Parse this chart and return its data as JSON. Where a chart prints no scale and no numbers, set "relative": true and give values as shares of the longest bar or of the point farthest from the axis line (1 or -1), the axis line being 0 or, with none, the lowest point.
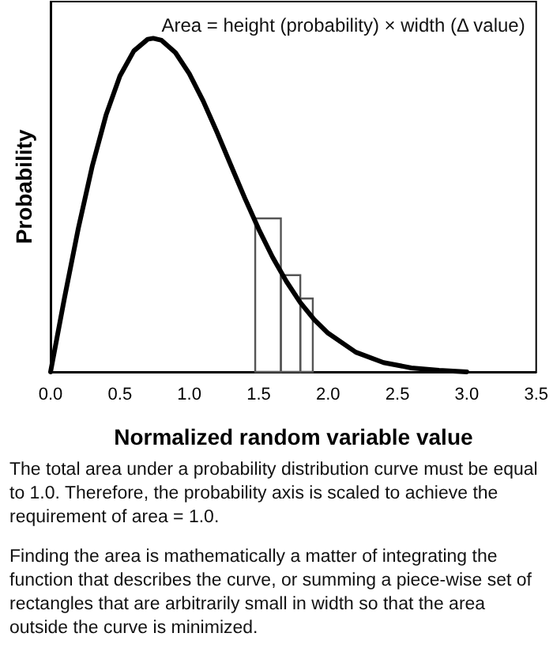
{
  "chart_data": {
    "type": "line",
    "relative": true,
    "xlabel": "Normalized random variable value",
    "ylabel": "Probability",
    "xlim": [
      0,
      3.5
    ],
    "xticks": [
      {
        "value": 0,
        "label": "0.0"
      },
      {
        "value": 0.5,
        "label": "0.5"
      },
      {
        "value": 1,
        "label": "1.0"
      },
      {
        "value": 1.5,
        "label": "1.5"
      },
      {
        "value": 2,
        "label": "2.0"
      },
      {
        "value": 2.5,
        "label": "2.5"
      },
      {
        "value": 3,
        "label": "3.0"
      },
      {
        "value": 3.5,
        "label": "3.5"
      }
    ],
    "grid": false,
    "marker": "none",
    "line_style": "solid",
    "series": [
      {
        "color": "#000000",
        "x": [
          0,
          0.1,
          0.2,
          0.3,
          0.4,
          0.5,
          0.6,
          0.7,
          0.74,
          0.8,
          0.9,
          1.0,
          1.1,
          1.2,
          1.3,
          1.4,
          1.5,
          1.6,
          1.7,
          1.8,
          1.9,
          2.0,
          2.2,
          2.4,
          2.6,
          2.8,
          3.0
        ],
        "values": [
          0,
          0.221,
          0.43,
          0.616,
          0.77,
          0.887,
          0.962,
          0.997,
          1,
          0.994,
          0.957,
          0.894,
          0.812,
          0.718,
          0.619,
          0.521,
          0.428,
          0.344,
          0.271,
          0.208,
          0.157,
          0.116,
          0.059,
          0.028,
          0.012,
          0.005,
          0
        ]
      },
      {
        "type": "histogram",
        "color": "#555555",
        "bins": [
          1.475,
          1.66,
          1.8,
          1.89
        ],
        "values": [
          0.46,
          0.29,
          0.22
        ]
      }
    ],
    "annotations": [
      "Area = height (probability) × width (Δ value)",
      "The total area under a probability distribution curve must be equal to 1.0. Therefore, the probability axis is scaled to achieve the requirement of area = 1.0.",
      "Finding the area is mathematically a matter of integrating the function that describes the curve, or summing a piece-wise set of rectangles that are arbitrarily small in width so that the area outside the curve is minimized."
    ]
  }
}
